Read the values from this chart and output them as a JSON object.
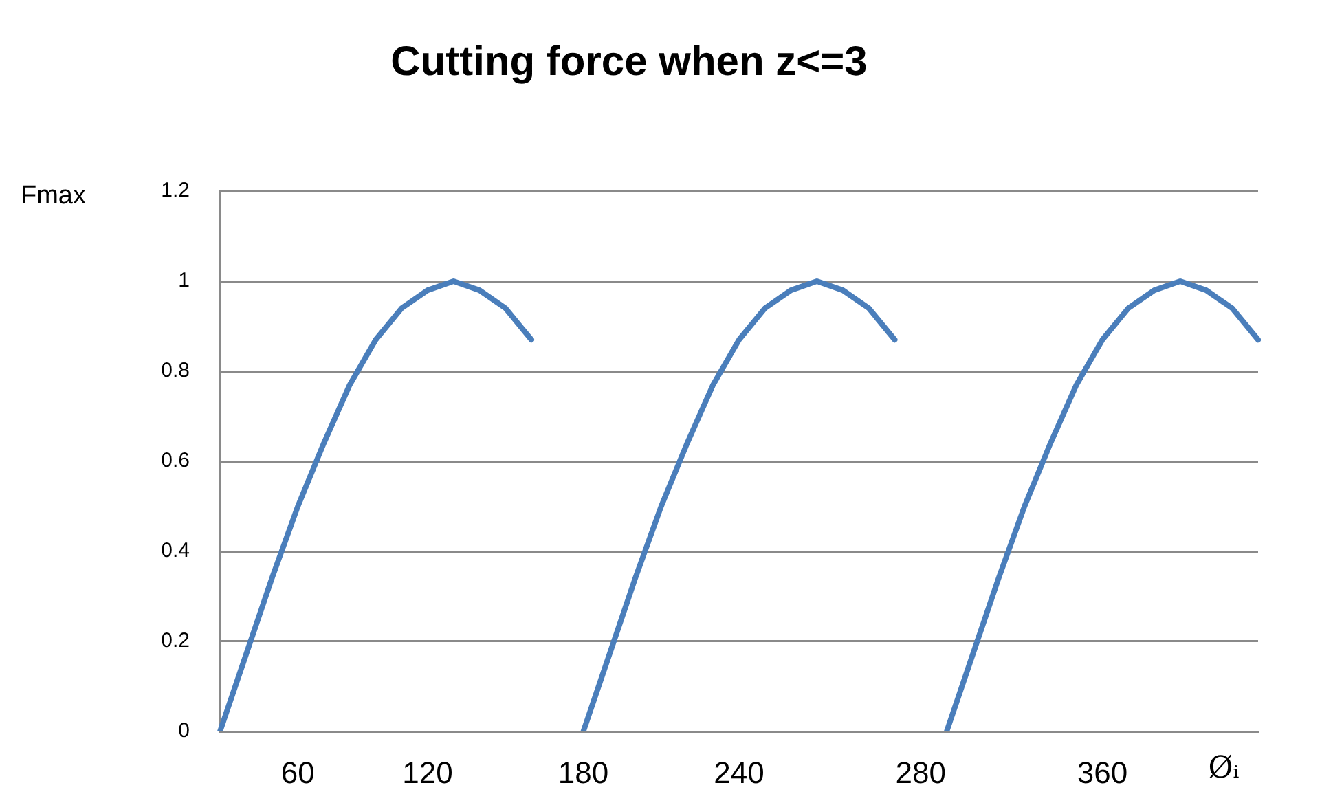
{
  "chart_data": {
    "type": "line",
    "title": "Cutting force when z<=3",
    "xlabel": "Øᵢ",
    "ylabel": "Fmax",
    "categories": [
      null,
      null,
      null,
      "60",
      null,
      null,
      null,
      null,
      "120",
      null,
      null,
      null,
      null,
      null,
      "180",
      null,
      null,
      null,
      null,
      null,
      "240",
      null,
      null,
      null,
      null,
      null,
      null,
      "280",
      null,
      null,
      null,
      null,
      null,
      null,
      "360",
      null,
      null,
      null,
      null,
      null,
      null
    ],
    "series": [
      {
        "color": "#4a7ebb",
        "values": [
          0,
          0.17,
          0.34,
          0.5,
          0.64,
          0.77,
          0.87,
          0.94,
          0.98,
          1,
          0.98,
          0.94,
          0.87,
          null,
          0,
          0.17,
          0.34,
          0.5,
          0.64,
          0.77,
          0.87,
          0.94,
          0.98,
          1,
          0.98,
          0.94,
          0.87,
          null,
          0,
          0.17,
          0.34,
          0.5,
          0.64,
          0.77,
          0.87,
          0.94,
          0.98,
          1,
          0.98,
          0.94,
          0.87
        ]
      }
    ],
    "ylim": [
      0,
      1.2
    ],
    "yticks": [
      0,
      0.2,
      0.4,
      0.6,
      0.8,
      1,
      1.2
    ],
    "grid": "y",
    "marker": "none"
  }
}
